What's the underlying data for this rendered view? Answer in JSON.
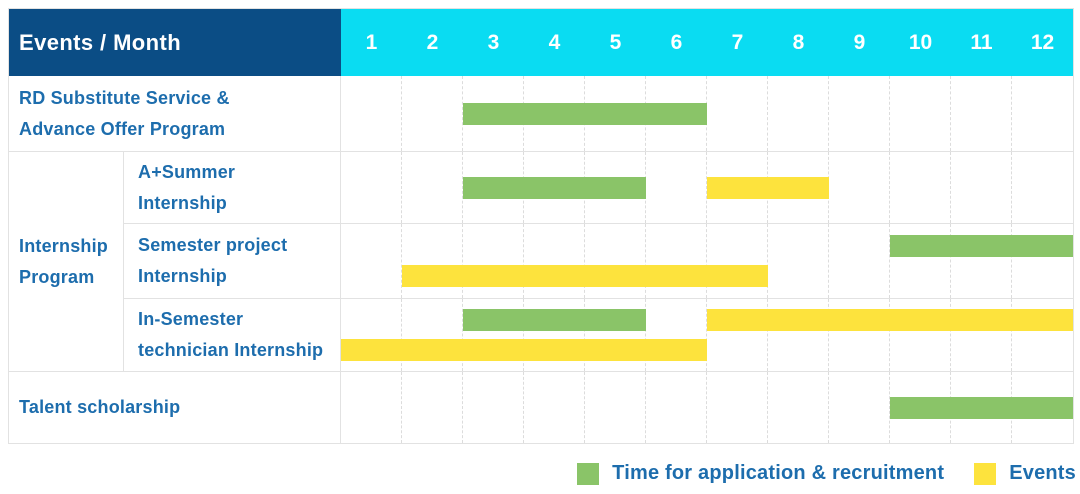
{
  "header": {
    "title": "Events / Month",
    "months": [
      "1",
      "2",
      "3",
      "4",
      "5",
      "6",
      "7",
      "8",
      "9",
      "10",
      "11",
      "12"
    ]
  },
  "colors": {
    "header_bg": "#0b4d85",
    "months_bg": "#0adcf2",
    "label_text": "#1d6dad",
    "application": "#8ac468",
    "events": "#fde33d",
    "gridline": "#dcdcdc",
    "border": "#e2e2e2"
  },
  "group_label": [
    "Internship",
    "Program"
  ],
  "rows": [
    {
      "label": [
        "RD Substitute Service &",
        "Advance Offer Program"
      ],
      "bars": [
        {
          "type": "application",
          "start": 3,
          "end": 6,
          "lane": "center"
        }
      ]
    },
    {
      "label": [
        "A+Summer",
        "Internship"
      ],
      "group": "Internship Program",
      "bars": [
        {
          "type": "application",
          "start": 3,
          "end": 5,
          "lane": "center"
        },
        {
          "type": "events",
          "start": 7,
          "end": 8,
          "lane": "center"
        }
      ]
    },
    {
      "label": [
        "Semester project",
        "Internship"
      ],
      "group": "Internship Program",
      "bars": [
        {
          "type": "application",
          "start": 10,
          "end": 12,
          "lane": "upper"
        },
        {
          "type": "events",
          "start": 2,
          "end": 7,
          "lane": "lower"
        }
      ]
    },
    {
      "label": [
        "In-Semester",
        "technician Internship"
      ],
      "group": "Internship Program",
      "bars": [
        {
          "type": "application",
          "start": 3,
          "end": 5,
          "lane": "upper"
        },
        {
          "type": "events",
          "start": 7,
          "end": 12,
          "lane": "upper"
        },
        {
          "type": "events",
          "start": 1,
          "end": 6,
          "lane": "lower"
        }
      ]
    },
    {
      "label": [
        "Talent scholarship"
      ],
      "bars": [
        {
          "type": "application",
          "start": 10,
          "end": 12,
          "lane": "center"
        }
      ]
    }
  ],
  "legend": {
    "application_label": "Time for application & recruitment",
    "events_label": "Events"
  },
  "chart_data": {
    "type": "table",
    "title": "Events / Month",
    "x_categories": [
      1,
      2,
      3,
      4,
      5,
      6,
      7,
      8,
      9,
      10,
      11,
      12
    ],
    "rows": [
      {
        "event": "RD Substitute Service & Advance Offer Program",
        "group": null,
        "application_month_ranges": [
          [
            3,
            6
          ]
        ],
        "events_month_ranges": []
      },
      {
        "event": "A+Summer Internship",
        "group": "Internship Program",
        "application_month_ranges": [
          [
            3,
            5
          ]
        ],
        "events_month_ranges": [
          [
            7,
            8
          ]
        ]
      },
      {
        "event": "Semester project Internship",
        "group": "Internship Program",
        "application_month_ranges": [
          [
            10,
            12
          ]
        ],
        "events_month_ranges": [
          [
            2,
            7
          ]
        ]
      },
      {
        "event": "In-Semester technician Internship",
        "group": "Internship Program",
        "application_month_ranges": [
          [
            3,
            5
          ]
        ],
        "events_month_ranges": [
          [
            1,
            6
          ],
          [
            7,
            12
          ]
        ]
      },
      {
        "event": "Talent scholarship",
        "group": null,
        "application_month_ranges": [
          [
            10,
            12
          ]
        ],
        "events_month_ranges": []
      }
    ],
    "legend": [
      "Time for application & recruitment",
      "Events"
    ],
    "legend_position": "bottom-right",
    "grid": true
  }
}
